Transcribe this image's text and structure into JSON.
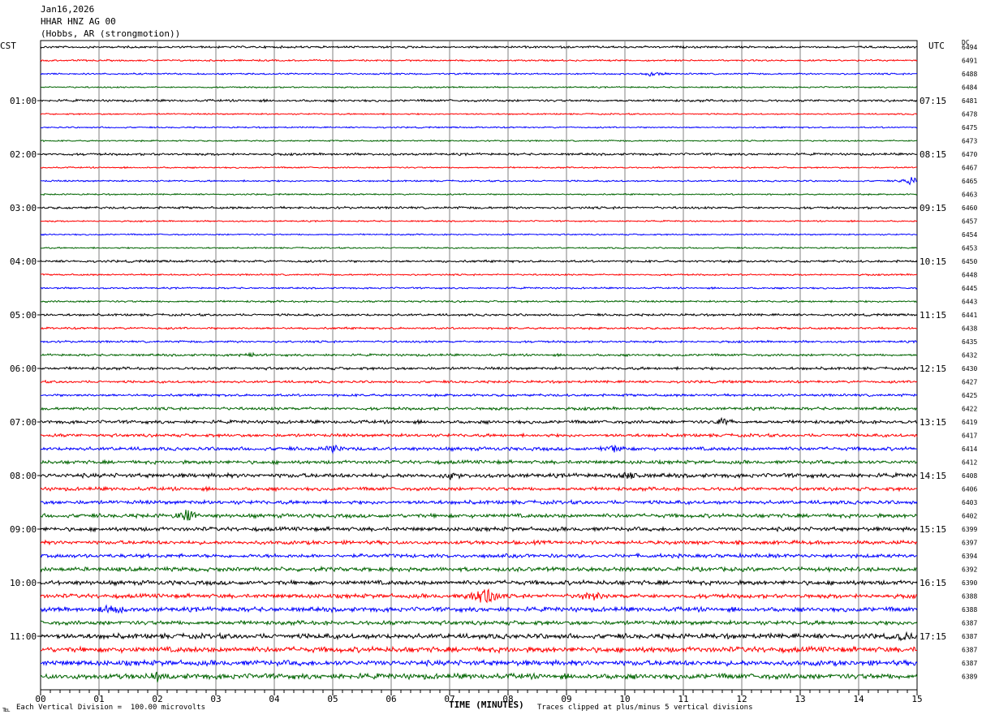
{
  "header": {
    "date": "Jan16,2026",
    "station": "HHAR HNZ AG 00",
    "location": "(Hobbs, AR (strongmotion))"
  },
  "left_timezone": "CST",
  "right_timezone": "UTC",
  "dc_label": "DC",
  "footer": {
    "scale_note": "Each Vertical Division =  100.00 microvolts",
    "clip_note": "Traces clipped at plus/minus 5 vertical divisions",
    "corner_mark": "℡"
  },
  "colors": {
    "line1": "#000000",
    "line2": "#ff0000",
    "line3": "#0000ff",
    "line4": "#006400",
    "grid": "#808080"
  },
  "chart_data": {
    "type": "line",
    "xlabel": "TIME (MINUTES)",
    "x_ticks": [
      "00",
      "01",
      "02",
      "03",
      "04",
      "05",
      "06",
      "07",
      "08",
      "09",
      "10",
      "11",
      "12",
      "13",
      "14",
      "15"
    ],
    "xlim": [
      0,
      15
    ],
    "traces_per_hour": 4,
    "left_hour_labels": [
      "01:00",
      "02:00",
      "03:00",
      "04:00",
      "05:00",
      "06:00",
      "07:00",
      "08:00",
      "09:00",
      "10:00",
      "11:00"
    ],
    "right_hour_labels": [
      "07:15",
      "08:15",
      "09:15",
      "10:15",
      "11:15",
      "12:15",
      "13:15",
      "14:15",
      "15:15",
      "16:15",
      "17:15"
    ],
    "dc_offsets": [
      6494,
      6491,
      6488,
      6484,
      6481,
      6478,
      6475,
      6473,
      6470,
      6467,
      6465,
      6463,
      6460,
      6457,
      6454,
      6453,
      6450,
      6448,
      6445,
      6443,
      6441,
      6438,
      6435,
      6432,
      6430,
      6427,
      6425,
      6422,
      6419,
      6417,
      6414,
      6412,
      6408,
      6406,
      6403,
      6402,
      6399,
      6397,
      6394,
      6392,
      6390,
      6388,
      6388,
      6387,
      6387,
      6387,
      6387,
      6389
    ],
    "noise_level": [
      1,
      0.8,
      0.8,
      0.7,
      1.1,
      0.7,
      0.7,
      0.7,
      1.1,
      0.7,
      0.8,
      0.7,
      1.1,
      0.7,
      0.7,
      0.7,
      1.1,
      0.8,
      0.8,
      0.9,
      1.1,
      1.0,
      1.0,
      1.1,
      1.3,
      1.2,
      1.2,
      1.4,
      1.6,
      1.5,
      1.7,
      1.7,
      2.0,
      1.7,
      1.8,
      1.9,
      1.9,
      1.8,
      1.8,
      2.0,
      2.1,
      2.0,
      2.2,
      2.0,
      2.4,
      2.6,
      2.5,
      2.6
    ],
    "events": [
      {
        "trace": 2,
        "minute": 10.5,
        "amp": 3
      },
      {
        "trace": 10,
        "minute": 14.9,
        "amp": 5
      },
      {
        "trace": 23,
        "minute": 3.6,
        "amp": 2
      },
      {
        "trace": 28,
        "minute": 11.7,
        "amp": 4
      },
      {
        "trace": 30,
        "minute": 5.0,
        "amp": 4
      },
      {
        "trace": 30,
        "minute": 9.8,
        "amp": 3
      },
      {
        "trace": 32,
        "minute": 10.1,
        "amp": 4
      },
      {
        "trace": 32,
        "minute": 7.0,
        "amp": 3
      },
      {
        "trace": 35,
        "minute": 2.5,
        "amp": 8
      },
      {
        "trace": 41,
        "minute": 7.5,
        "amp": 10
      },
      {
        "trace": 41,
        "minute": 7.7,
        "amp": 9
      },
      {
        "trace": 41,
        "minute": 9.4,
        "amp": 6
      },
      {
        "trace": 42,
        "minute": 1.2,
        "amp": 6
      },
      {
        "trace": 44,
        "minute": 14.8,
        "amp": 4
      },
      {
        "trace": 47,
        "minute": 2.0,
        "amp": 4
      }
    ]
  }
}
